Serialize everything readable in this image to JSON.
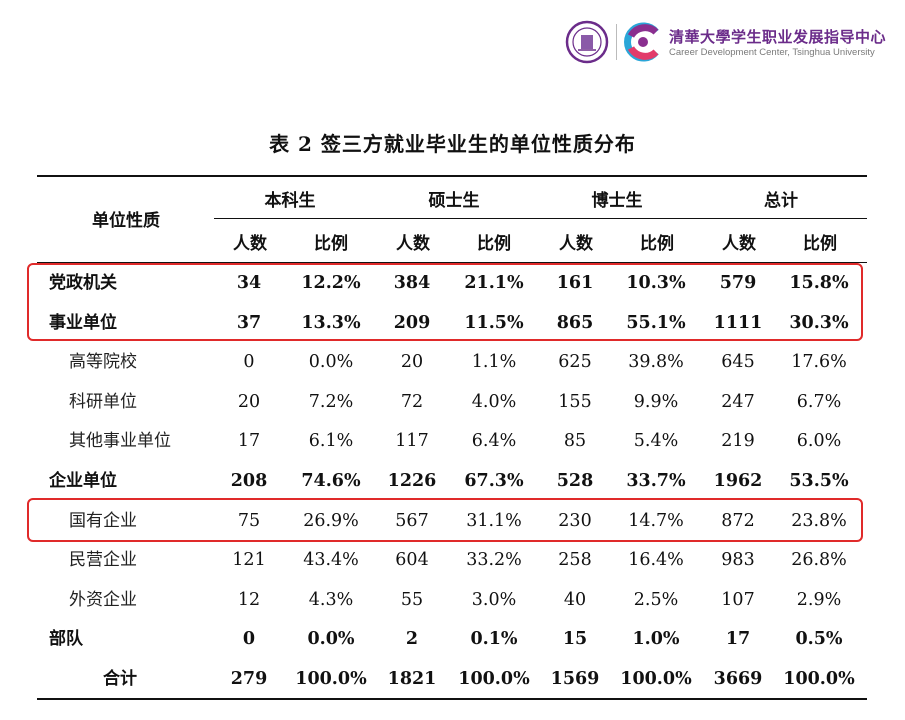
{
  "header": {
    "org_cn": "清華大學学生职业发展指导中心",
    "org_en": "Career Development Center, Tsinghua University"
  },
  "title": "表 2 签三方就业毕业生的单位性质分布",
  "columns": {
    "row_header": "单位性质",
    "groups": [
      "本科生",
      "硕士生",
      "博士生",
      "总计"
    ],
    "sub": [
      "人数",
      "比例"
    ]
  },
  "rows": [
    {
      "label": "党政机关",
      "kind": "main",
      "values": [
        "34",
        "12.2%",
        "384",
        "21.1%",
        "161",
        "10.3%",
        "579",
        "15.8%"
      ]
    },
    {
      "label": "事业单位",
      "kind": "main",
      "values": [
        "37",
        "13.3%",
        "209",
        "11.5%",
        "865",
        "55.1%",
        "1111",
        "30.3%"
      ]
    },
    {
      "label": "高等院校",
      "kind": "sub",
      "values": [
        "0",
        "0.0%",
        "20",
        "1.1%",
        "625",
        "39.8%",
        "645",
        "17.6%"
      ]
    },
    {
      "label": "科研单位",
      "kind": "sub",
      "values": [
        "20",
        "7.2%",
        "72",
        "4.0%",
        "155",
        "9.9%",
        "247",
        "6.7%"
      ]
    },
    {
      "label": "其他事业单位",
      "kind": "sub",
      "values": [
        "17",
        "6.1%",
        "117",
        "6.4%",
        "85",
        "5.4%",
        "219",
        "6.0%"
      ]
    },
    {
      "label": "企业单位",
      "kind": "main",
      "values": [
        "208",
        "74.6%",
        "1226",
        "67.3%",
        "528",
        "33.7%",
        "1962",
        "53.5%"
      ]
    },
    {
      "label": "国有企业",
      "kind": "sub",
      "values": [
        "75",
        "26.9%",
        "567",
        "31.1%",
        "230",
        "14.7%",
        "872",
        "23.8%"
      ]
    },
    {
      "label": "民营企业",
      "kind": "sub",
      "values": [
        "121",
        "43.4%",
        "604",
        "33.2%",
        "258",
        "16.4%",
        "983",
        "26.8%"
      ]
    },
    {
      "label": "外资企业",
      "kind": "sub",
      "values": [
        "12",
        "4.3%",
        "55",
        "3.0%",
        "40",
        "2.5%",
        "107",
        "2.9%"
      ]
    },
    {
      "label": "部队",
      "kind": "main",
      "values": [
        "0",
        "0.0%",
        "2",
        "0.1%",
        "15",
        "1.0%",
        "17",
        "0.5%"
      ]
    },
    {
      "label": "合计",
      "kind": "total",
      "values": [
        "279",
        "100.0%",
        "1821",
        "100.0%",
        "1569",
        "100.0%",
        "3669",
        "100.0%"
      ]
    }
  ],
  "colors": {
    "highlight_box": "#e02a2a",
    "brand_purple": "#6b2c8a"
  }
}
